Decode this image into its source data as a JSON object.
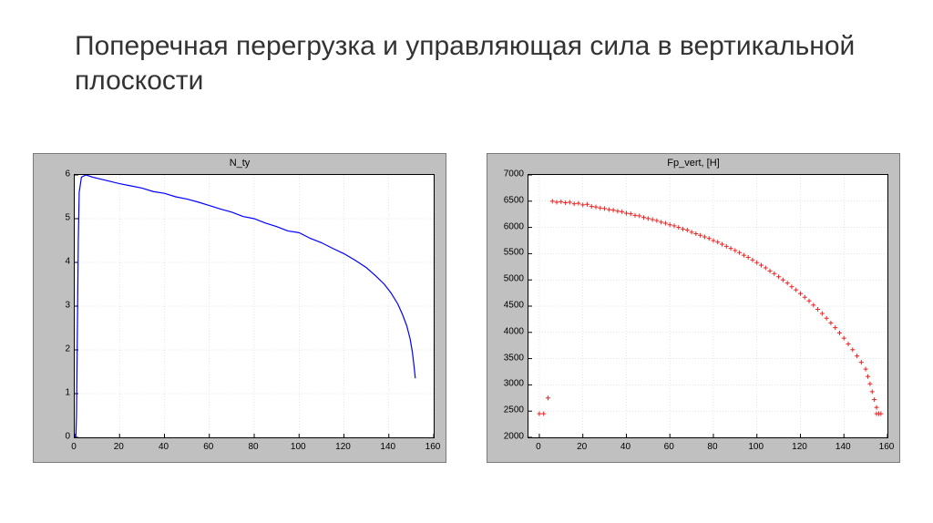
{
  "slide": {
    "title": "Поперечная перегрузка и управляющая сила в вертикальной  плоскости"
  },
  "chart_left": {
    "title": "N_ty",
    "type": "line",
    "background_color": "#c0c0c0",
    "plot_bg": "#ffffff",
    "grid_color": "#cccccc",
    "line_color": "#0000ff",
    "line_width": 1.2,
    "xlim": [
      0,
      160
    ],
    "ylim": [
      0,
      6
    ],
    "xticks": [
      0,
      20,
      40,
      60,
      80,
      100,
      120,
      140,
      160
    ],
    "yticks": [
      0,
      1,
      2,
      3,
      4,
      5,
      6
    ],
    "data": [
      [
        0.5,
        0.0
      ],
      [
        0.8,
        0.5
      ],
      [
        1.0,
        1.5
      ],
      [
        1.3,
        3.0
      ],
      [
        1.6,
        4.5
      ],
      [
        2.0,
        5.6
      ],
      [
        3,
        5.95
      ],
      [
        5,
        6.0
      ],
      [
        8,
        5.95
      ],
      [
        12,
        5.9
      ],
      [
        16,
        5.85
      ],
      [
        20,
        5.8
      ],
      [
        25,
        5.75
      ],
      [
        30,
        5.7
      ],
      [
        35,
        5.62
      ],
      [
        40,
        5.58
      ],
      [
        45,
        5.5
      ],
      [
        50,
        5.45
      ],
      [
        55,
        5.38
      ],
      [
        60,
        5.3
      ],
      [
        65,
        5.22
      ],
      [
        70,
        5.15
      ],
      [
        75,
        5.05
      ],
      [
        80,
        5.0
      ],
      [
        85,
        4.9
      ],
      [
        90,
        4.82
      ],
      [
        95,
        4.72
      ],
      [
        100,
        4.68
      ],
      [
        105,
        4.55
      ],
      [
        110,
        4.45
      ],
      [
        115,
        4.32
      ],
      [
        120,
        4.2
      ],
      [
        125,
        4.05
      ],
      [
        130,
        3.88
      ],
      [
        134,
        3.7
      ],
      [
        138,
        3.5
      ],
      [
        141,
        3.3
      ],
      [
        144,
        3.05
      ],
      [
        146,
        2.82
      ],
      [
        148,
        2.55
      ],
      [
        149.5,
        2.25
      ],
      [
        150.5,
        1.95
      ],
      [
        151.3,
        1.6
      ],
      [
        151.8,
        1.35
      ]
    ]
  },
  "chart_right": {
    "title": "Fp_vert, [H]",
    "type": "scatter",
    "background_color": "#c0c0c0",
    "plot_bg": "#ffffff",
    "grid_color": "#cccccc",
    "marker_color": "#ef2020",
    "marker": "+",
    "marker_size": 5,
    "xlim": [
      -5,
      160
    ],
    "ylim": [
      2000,
      7000
    ],
    "xticks": [
      0,
      20,
      40,
      60,
      80,
      100,
      120,
      140,
      160
    ],
    "yticks": [
      2000,
      2500,
      3000,
      3500,
      4000,
      4500,
      5000,
      5500,
      6000,
      6500,
      7000
    ],
    "data": [
      [
        0,
        2450
      ],
      [
        2,
        2450
      ],
      [
        4,
        2750
      ],
      [
        6,
        6500
      ],
      [
        8,
        6480
      ],
      [
        10,
        6490
      ],
      [
        12,
        6470
      ],
      [
        14,
        6480
      ],
      [
        16,
        6450
      ],
      [
        18,
        6460
      ],
      [
        20,
        6430
      ],
      [
        22,
        6440
      ],
      [
        24,
        6400
      ],
      [
        26,
        6390
      ],
      [
        28,
        6370
      ],
      [
        30,
        6360
      ],
      [
        32,
        6340
      ],
      [
        34,
        6330
      ],
      [
        36,
        6310
      ],
      [
        38,
        6300
      ],
      [
        40,
        6270
      ],
      [
        42,
        6260
      ],
      [
        44,
        6230
      ],
      [
        46,
        6220
      ],
      [
        48,
        6190
      ],
      [
        50,
        6170
      ],
      [
        52,
        6150
      ],
      [
        54,
        6130
      ],
      [
        56,
        6100
      ],
      [
        58,
        6080
      ],
      [
        60,
        6050
      ],
      [
        62,
        6030
      ],
      [
        64,
        6000
      ],
      [
        66,
        5970
      ],
      [
        68,
        5950
      ],
      [
        70,
        5910
      ],
      [
        72,
        5880
      ],
      [
        74,
        5850
      ],
      [
        76,
        5820
      ],
      [
        78,
        5790
      ],
      [
        80,
        5750
      ],
      [
        82,
        5720
      ],
      [
        84,
        5680
      ],
      [
        86,
        5640
      ],
      [
        88,
        5600
      ],
      [
        90,
        5560
      ],
      [
        92,
        5520
      ],
      [
        94,
        5470
      ],
      [
        96,
        5430
      ],
      [
        98,
        5380
      ],
      [
        100,
        5330
      ],
      [
        102,
        5280
      ],
      [
        104,
        5230
      ],
      [
        106,
        5170
      ],
      [
        108,
        5120
      ],
      [
        110,
        5060
      ],
      [
        112,
        5000
      ],
      [
        114,
        4940
      ],
      [
        116,
        4870
      ],
      [
        118,
        4810
      ],
      [
        120,
        4740
      ],
      [
        122,
        4670
      ],
      [
        124,
        4600
      ],
      [
        126,
        4520
      ],
      [
        128,
        4440
      ],
      [
        130,
        4360
      ],
      [
        132,
        4270
      ],
      [
        134,
        4180
      ],
      [
        136,
        4090
      ],
      [
        138,
        3990
      ],
      [
        140,
        3890
      ],
      [
        142,
        3780
      ],
      [
        144,
        3670
      ],
      [
        146,
        3550
      ],
      [
        148,
        3430
      ],
      [
        150,
        3300
      ],
      [
        151,
        3160
      ],
      [
        152,
        3020
      ],
      [
        153,
        2870
      ],
      [
        154,
        2720
      ],
      [
        155,
        2570
      ],
      [
        155,
        2450
      ],
      [
        156,
        2450
      ],
      [
        157,
        2450
      ]
    ]
  }
}
